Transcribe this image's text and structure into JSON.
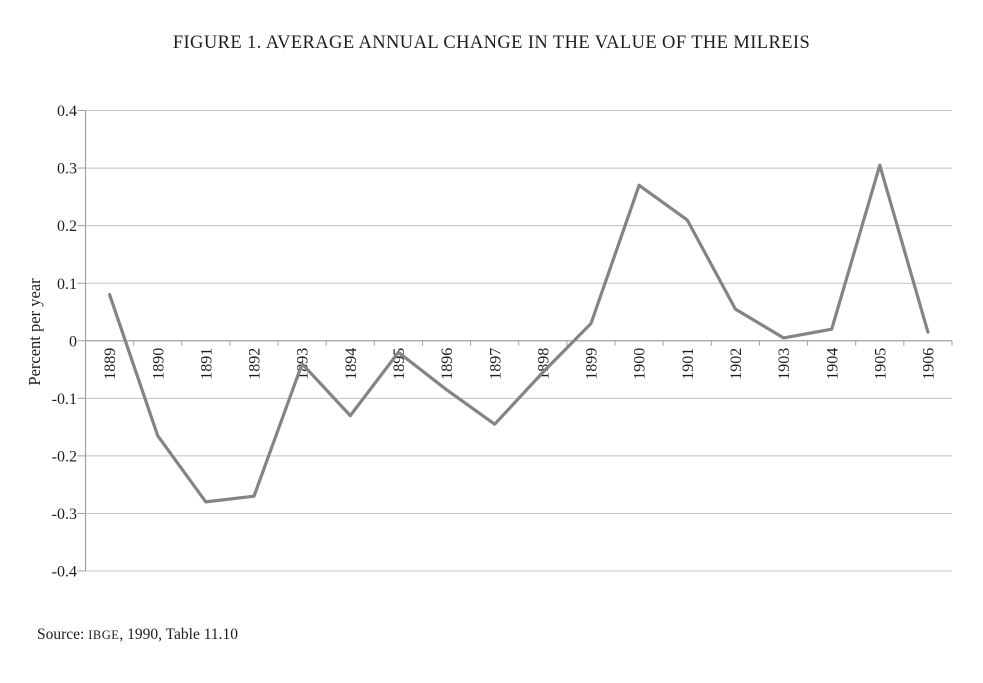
{
  "figure": {
    "title": "FIGURE 1. AVERAGE ANNUAL CHANGE IN THE VALUE OF THE MILREIS",
    "source": {
      "prefix": "Source: ",
      "org": "IBGE",
      "suffix": ", 1990, Table 11.10"
    }
  },
  "chart_data": {
    "type": "line",
    "title": "FIGURE 1. AVERAGE ANNUAL CHANGE IN THE VALUE OF THE MILREIS",
    "xlabel": "",
    "ylabel": "Percent per year",
    "categories": [
      "1889",
      "1890",
      "1891",
      "1892",
      "1893",
      "1894",
      "1895",
      "1896",
      "1897",
      "1898",
      "1899",
      "1900",
      "1901",
      "1902",
      "1903",
      "1904",
      "1905",
      "1906"
    ],
    "values": [
      0.08,
      -0.165,
      -0.28,
      -0.27,
      -0.04,
      -0.13,
      -0.02,
      -0.085,
      -0.145,
      -0.055,
      0.03,
      0.27,
      0.21,
      0.055,
      0.005,
      0.02,
      0.305,
      0.015
    ],
    "ylim": [
      -0.4,
      0.4
    ],
    "ytick_step": 0.1,
    "ytick_labels": [
      "0.4",
      "0.3",
      "0.2",
      "0.1",
      "0",
      "-0.1",
      "-0.2",
      "-0.3",
      "-0.4"
    ],
    "grid": true,
    "legend": "none",
    "x_labels_rotated_degrees": -90,
    "colors": {
      "series_line": "#848484",
      "gridline": "#c3c3c3",
      "axis": "#a0a0a0",
      "text": "#1d1d1d",
      "background": "#ffffff"
    }
  }
}
